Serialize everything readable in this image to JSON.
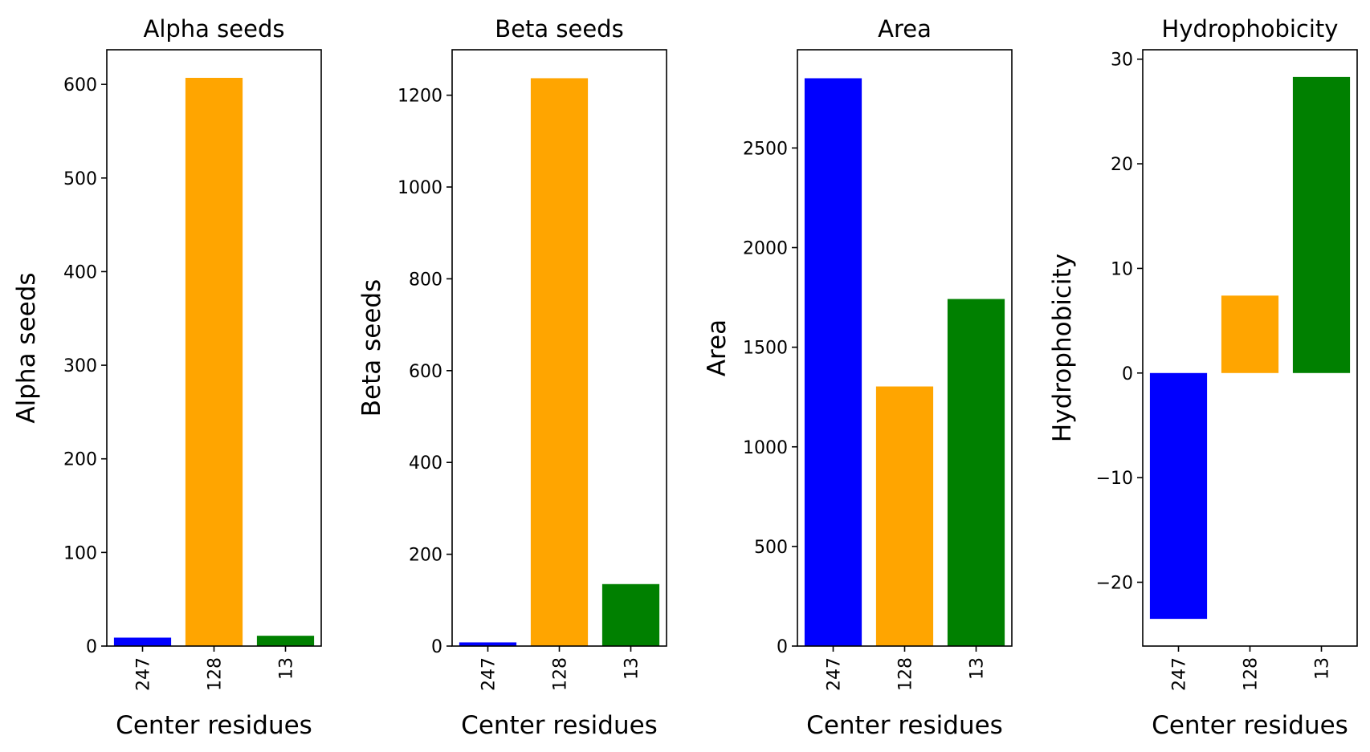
{
  "chart_data": [
    {
      "type": "bar",
      "title": "Alpha seeds",
      "xlabel": "Center residues",
      "ylabel": "Alpha seeds",
      "categories": [
        "247",
        "128",
        "13"
      ],
      "values": [
        9,
        607,
        11
      ],
      "colors": [
        "#0000ff",
        "#ffa500",
        "#008000"
      ],
      "ylim": [
        0,
        637
      ],
      "yticks": [
        0,
        100,
        200,
        300,
        400,
        500,
        600
      ]
    },
    {
      "type": "bar",
      "title": "Beta seeds",
      "xlabel": "Center residues",
      "ylabel": "Beta seeds",
      "categories": [
        "247",
        "128",
        "13"
      ],
      "values": [
        8,
        1237,
        135
      ],
      "colors": [
        "#0000ff",
        "#ffa500",
        "#008000"
      ],
      "ylim": [
        0,
        1299
      ],
      "yticks": [
        0,
        200,
        400,
        600,
        800,
        1000,
        1200
      ]
    },
    {
      "type": "bar",
      "title": "Area",
      "xlabel": "Center residues",
      "ylabel": "Area",
      "categories": [
        "247",
        "128",
        "13"
      ],
      "values": [
        2850,
        1303,
        1742
      ],
      "colors": [
        "#0000ff",
        "#ffa500",
        "#008000"
      ],
      "ylim": [
        0,
        2993
      ],
      "yticks": [
        0,
        500,
        1000,
        1500,
        2000,
        2500
      ]
    },
    {
      "type": "bar",
      "title": "Hydrophobicity",
      "xlabel": "Center residues",
      "ylabel": "Hydrophobicity",
      "categories": [
        "247",
        "128",
        "13"
      ],
      "values": [
        -23.5,
        7.4,
        28.3
      ],
      "colors": [
        "#0000ff",
        "#ffa500",
        "#008000"
      ],
      "ylim": [
        -26.1,
        30.9
      ],
      "yticks": [
        -20,
        -10,
        0,
        10,
        20,
        30
      ],
      "ytick_labels": [
        "−20",
        "−10",
        "0",
        "10",
        "20",
        "30"
      ]
    }
  ]
}
